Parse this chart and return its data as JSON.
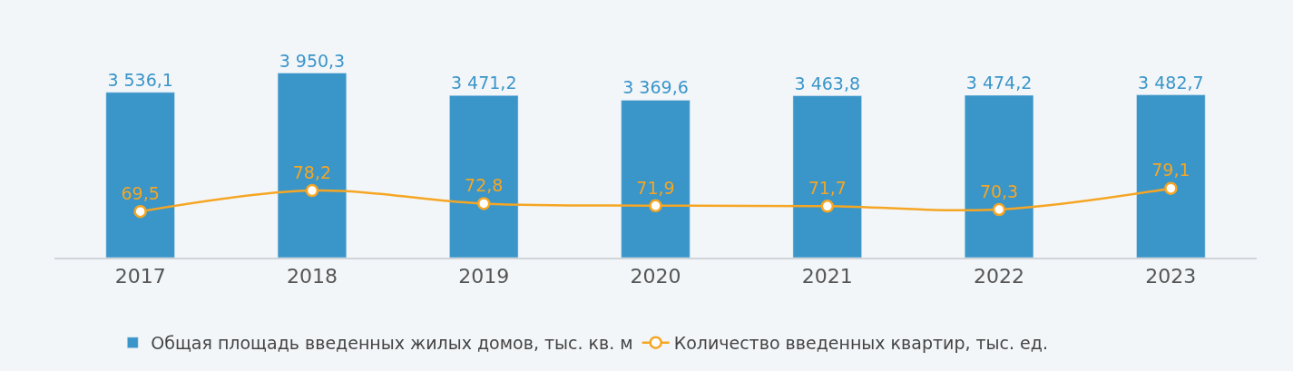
{
  "chart_data": {
    "type": "bar",
    "categories": [
      "2017",
      "2018",
      "2019",
      "2020",
      "2021",
      "2022",
      "2023"
    ],
    "series": [
      {
        "name": "Общая площадь введенных жилых домов, тыс. кв. м",
        "color": "#3a95c9",
        "values": [
          3536.1,
          3950.3,
          3471.2,
          3369.6,
          3463.8,
          3474.2,
          3482.7
        ],
        "value_labels": [
          "3 536,1",
          "3 950,3",
          "3 471,2",
          "3 369,6",
          "3 463,8",
          "3 474,2",
          "3 482,7"
        ]
      },
      {
        "name": "Количество введенных квартир, тыс. ед.",
        "type": "line",
        "axis": "y2",
        "color": "#f5a623",
        "marker": "circle",
        "values": [
          69.5,
          78.2,
          72.8,
          71.9,
          71.7,
          70.3,
          79.1
        ],
        "value_labels": [
          "69,5",
          "78,2",
          "72,8",
          "71,9",
          "71,7",
          "70,3",
          "79,1"
        ]
      }
    ],
    "legend": "bottom",
    "grid": false
  }
}
